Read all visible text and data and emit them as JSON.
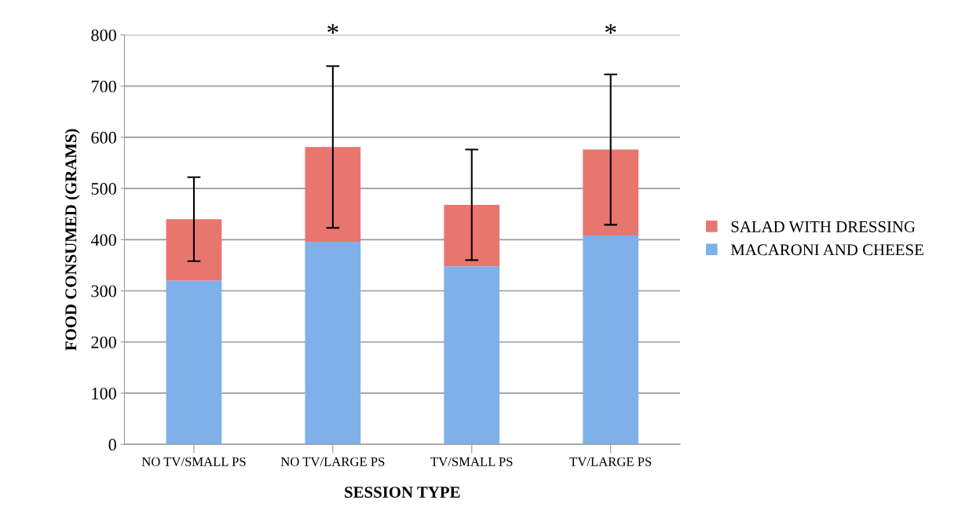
{
  "chart_data": {
    "type": "bar",
    "stacked": true,
    "xlabel": "SESSION TYPE",
    "ylabel": "FOOD CONSUMED (GRAMS)",
    "categories": [
      "NO TV/SMALL PS",
      "NO TV/LARGE PS",
      "TV/SMALL PS",
      "TV/LARGE PS"
    ],
    "series": [
      {
        "name": "MACARONI AND CHEESE",
        "color": "#7fb0ea",
        "values": [
          320,
          396,
          348,
          408
        ]
      },
      {
        "name": "SALAD WITH DRESSING",
        "color": "#e8766f",
        "values": [
          120,
          185,
          120,
          168
        ],
        "errors": [
          82,
          158,
          108,
          147
        ]
      }
    ],
    "annotations": [
      "*",
      "*"
    ],
    "ylim": [
      0,
      800
    ],
    "yticks": [
      0,
      100,
      200,
      300,
      400,
      500,
      600,
      700,
      800
    ],
    "grid": "y",
    "legend": "right"
  }
}
